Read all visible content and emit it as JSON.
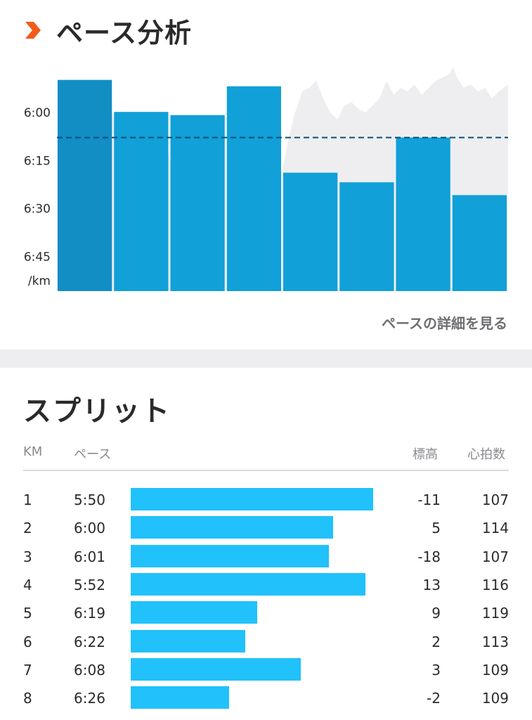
{
  "pace_section": {
    "title": "ペース分析",
    "link_label": "ペースの詳細を見る"
  },
  "colors": {
    "accent": "#f25c19",
    "bar": "#099dd6",
    "bar_first": "#0a8ac3",
    "split_bar": "#21c1fb",
    "area": "#eeeef1"
  },
  "icons": {
    "section_marker": "chevron-right-icon"
  },
  "chart_data": {
    "type": "bar",
    "y_axis_unit": "/km",
    "y_tick_labels": [
      "6:00",
      "6:15",
      "6:30",
      "6:45"
    ],
    "y_tick_seconds": [
      360,
      375,
      390,
      405
    ],
    "ylim_seconds": [
      347,
      416
    ],
    "y_inverted": true,
    "categories": [
      "1",
      "2",
      "3",
      "4",
      "5",
      "6",
      "7",
      "8"
    ],
    "values_seconds": [
      350,
      360,
      361,
      352,
      379,
      382,
      368,
      386
    ],
    "average_line_seconds": 368,
    "background_area": "pace trace behind bars"
  },
  "splits": {
    "title": "スプリット",
    "columns": {
      "km": "KM",
      "pace": "ペース",
      "elevation": "標高",
      "heart_rate": "心拍数"
    },
    "rows": [
      {
        "km": "1",
        "pace": "5:50",
        "elevation": "-11",
        "heart_rate": "107",
        "pace_seconds": 350
      },
      {
        "km": "2",
        "pace": "6:00",
        "elevation": "5",
        "heart_rate": "114",
        "pace_seconds": 360
      },
      {
        "km": "3",
        "pace": "6:01",
        "elevation": "-18",
        "heart_rate": "107",
        "pace_seconds": 361
      },
      {
        "km": "4",
        "pace": "5:52",
        "elevation": "13",
        "heart_rate": "116",
        "pace_seconds": 352
      },
      {
        "km": "5",
        "pace": "6:19",
        "elevation": "9",
        "heart_rate": "119",
        "pace_seconds": 379
      },
      {
        "km": "6",
        "pace": "6:22",
        "elevation": "2",
        "heart_rate": "113",
        "pace_seconds": 382
      },
      {
        "km": "7",
        "pace": "6:08",
        "elevation": "3",
        "heart_rate": "109",
        "pace_seconds": 368
      },
      {
        "km": "8",
        "pace": "6:26",
        "elevation": "-2",
        "heart_rate": "109",
        "pace_seconds": 386
      }
    ]
  }
}
